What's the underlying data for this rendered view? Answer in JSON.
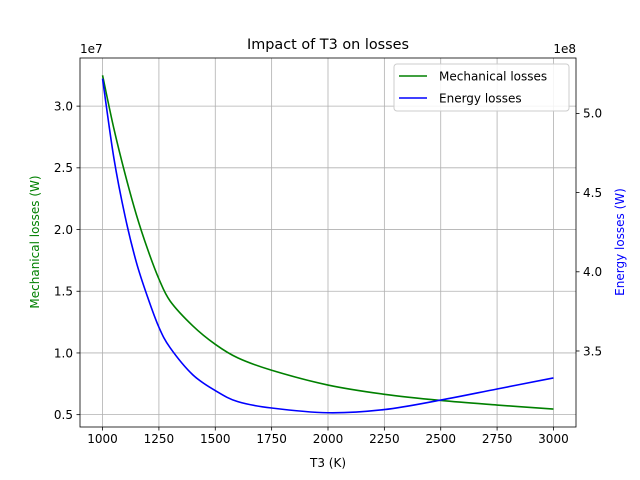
{
  "chart_data": {
    "type": "line",
    "title": "Impact of T3 on losses",
    "xlabel": "T3 (K)",
    "ylabel_left": "Mechanical losses (W)",
    "ylabel_right": "Energy losses (W)",
    "left_offset_text": "1e7",
    "right_offset_text": "1e8",
    "xlim": [
      900,
      3100
    ],
    "ylim_left": [
      0.4,
      3.39
    ],
    "ylim_right": [
      3.02,
      5.35
    ],
    "xticks": [
      1000,
      1250,
      1500,
      1750,
      2000,
      2250,
      2500,
      2750,
      3000
    ],
    "xtick_labels": [
      "1000",
      "1250",
      "1500",
      "1750",
      "2000",
      "2250",
      "2500",
      "2750",
      "3000"
    ],
    "yticks_left": [
      0.5,
      1.0,
      1.5,
      2.0,
      2.5,
      3.0
    ],
    "ytick_labels_left": [
      "0.5",
      "1.0",
      "1.5",
      "2.0",
      "2.5",
      "3.0"
    ],
    "yticks_right": [
      3.5,
      4.0,
      4.5,
      5.0
    ],
    "ytick_labels_right": [
      "3.5",
      "4.0",
      "4.5",
      "5.0"
    ],
    "grid": true,
    "legend_position": "top-right",
    "series": [
      {
        "name": "Mechanical losses",
        "axis": "left",
        "color": "#008000",
        "x": [
          1000,
          1050,
          1100,
          1150,
          1200,
          1250,
          1300,
          1400,
          1500,
          1600,
          1750,
          2000,
          2250,
          2500,
          2750,
          3000
        ],
        "y": [
          3.25,
          2.82,
          2.45,
          2.12,
          1.84,
          1.6,
          1.42,
          1.22,
          1.07,
          0.96,
          0.86,
          0.74,
          0.665,
          0.615,
          0.578,
          0.545
        ]
      },
      {
        "name": "Energy losses",
        "axis": "right",
        "color": "#0000ff",
        "x": [
          1000,
          1050,
          1100,
          1150,
          1200,
          1250,
          1300,
          1400,
          1500,
          1600,
          1750,
          2000,
          2250,
          2500,
          2750,
          3000
        ],
        "y": [
          5.22,
          4.72,
          4.35,
          4.06,
          3.84,
          3.65,
          3.52,
          3.35,
          3.25,
          3.18,
          3.14,
          3.11,
          3.13,
          3.19,
          3.26,
          3.33
        ]
      }
    ]
  }
}
